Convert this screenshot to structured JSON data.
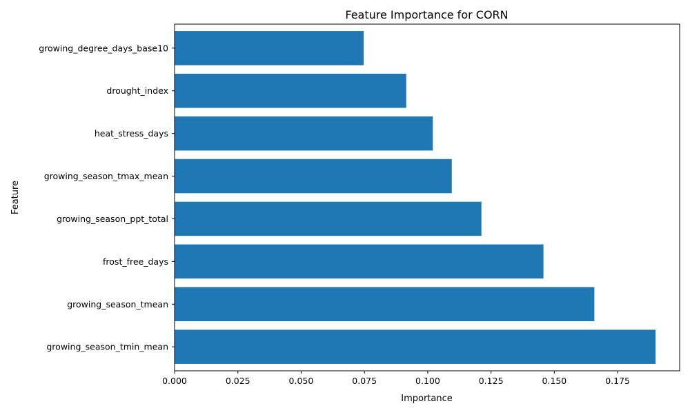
{
  "chart_data": {
    "type": "bar",
    "orientation": "horizontal",
    "title": "Feature Importance for CORN",
    "xlabel": "Importance",
    "ylabel": "Feature",
    "categories": [
      "growing_season_tmin_mean",
      "growing_season_tmean",
      "frost_free_days",
      "growing_season_ppt_total",
      "growing_season_tmax_mean",
      "heat_stress_days",
      "drought_index",
      "growing_degree_days_base10"
    ],
    "values": [
      0.19,
      0.1658,
      0.1457,
      0.1212,
      0.1095,
      0.102,
      0.0915,
      0.0747
    ],
    "xlim": [
      0,
      0.1995
    ],
    "xticks": [
      0.0,
      0.025,
      0.05,
      0.075,
      0.1,
      0.125,
      0.15,
      0.175
    ],
    "xtick_labels": [
      "0.000",
      "0.025",
      "0.050",
      "0.075",
      "0.100",
      "0.125",
      "0.150",
      "0.175"
    ],
    "bar_color": "#1f77b4",
    "grid": false,
    "legend": "none"
  }
}
